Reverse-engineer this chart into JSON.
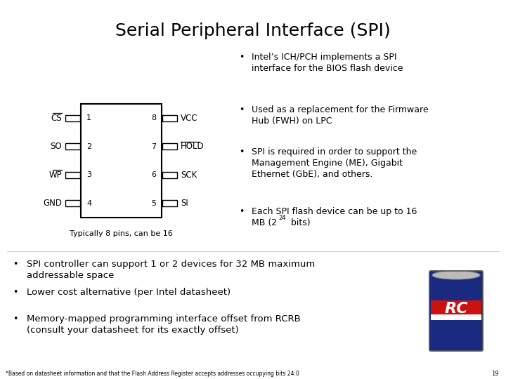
{
  "title": "Serial Peripheral Interface (SPI)",
  "bg_color": "#ffffff",
  "title_fontsize": 18,
  "bullet_right": [
    "Intel’s ICH/PCH implements a SPI\ninterface for the BIOS flash device",
    "Used as a replacement for the Firmware\nHub (FWH) on LPC",
    "SPI is required in order to support the\nManagement Engine (ME), Gigabit\nEthernet (GbE), and others.",
    "Each SPI flash device can be up to 16\nMB (2²⁴ bits)"
  ],
  "bullet_bottom": [
    "SPI controller can support 1 or 2 devices for 32 MB maximum\naddressable space",
    "Lower cost alternative (per Intel datasheet)",
    "Memory-mapped programming interface offset from RCRB\n(consult your datasheet for its exactly offset)"
  ],
  "footnote": "*Based on datasheet information and that the Flash Address Register accepts addresses occupying bits 24:0",
  "footnote_page": "19",
  "chip_label": "Typically 8 pins, can be 16",
  "left_pins": [
    {
      "label": "CS",
      "overline": true,
      "num": "1"
    },
    {
      "label": "SO",
      "overline": false,
      "num": "2"
    },
    {
      "label": "WP",
      "overline": true,
      "num": "3"
    },
    {
      "label": "GND",
      "overline": false,
      "num": "4"
    }
  ],
  "right_pins": [
    {
      "label": "VCC",
      "overline": false,
      "num": "8"
    },
    {
      "label": "HOLD",
      "overline": true,
      "num": "7"
    },
    {
      "label": "SCK",
      "overline": false,
      "num": "6"
    },
    {
      "label": "SI",
      "overline": false,
      "num": "5"
    }
  ]
}
